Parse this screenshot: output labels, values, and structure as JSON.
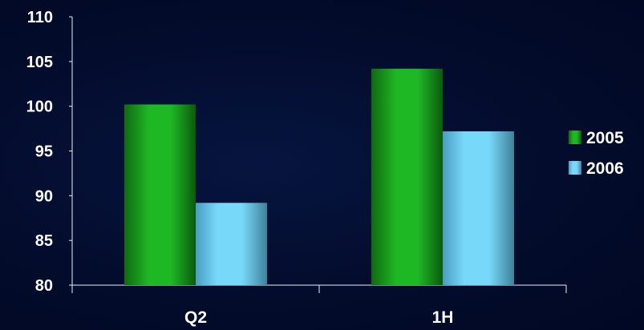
{
  "chart_data": {
    "type": "bar",
    "categories": [
      "Q2",
      "1H"
    ],
    "series": [
      {
        "name": "2005",
        "values": [
          100.2,
          104.2
        ],
        "color": "#1fb21f"
      },
      {
        "name": "2006",
        "values": [
          89.2,
          97.2
        ],
        "color": "#6fd3f5"
      }
    ],
    "ylim": [
      80,
      110
    ],
    "yticks": [
      80,
      85,
      90,
      95,
      100,
      105,
      110
    ],
    "grid": false,
    "legend": "right"
  }
}
